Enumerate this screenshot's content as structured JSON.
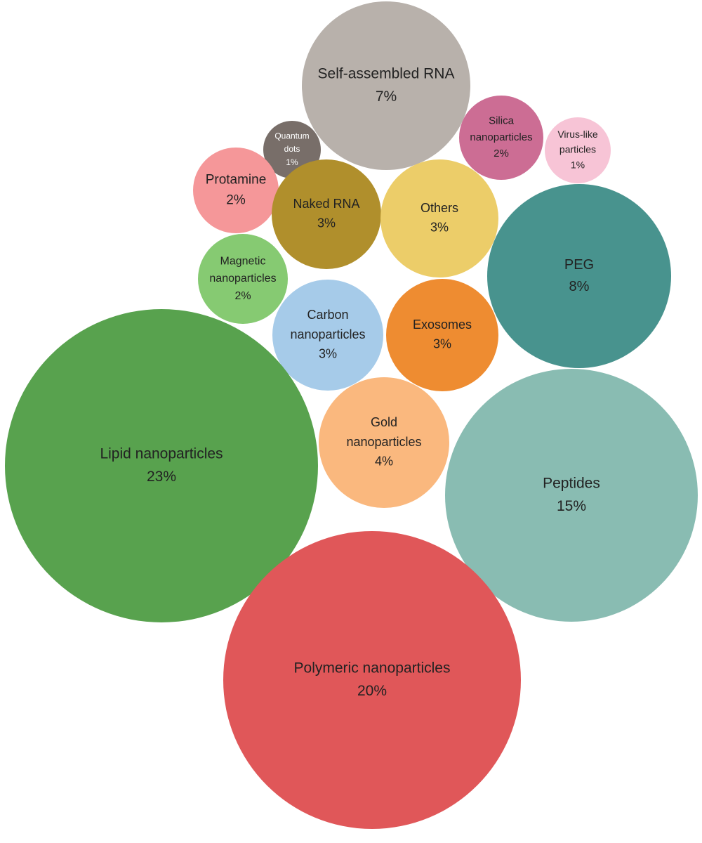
{
  "chart_data": {
    "type": "bubble",
    "unit": "%",
    "series": [
      {
        "name": "Self-assembled RNA",
        "value": 7,
        "value_label": "7%",
        "color": "#b8b1ab",
        "text_color": "#222222"
      },
      {
        "name": "Silica nanoparticles",
        "value": 2,
        "value_label": "2%",
        "color": "#cc6d94",
        "text_color": "#222222"
      },
      {
        "name": "Virus-like particles",
        "value": 1,
        "value_label": "1%",
        "color": "#f7c4d6",
        "text_color": "#222222"
      },
      {
        "name": "Quantum dots",
        "value": 1,
        "value_label": "1%",
        "color": "#786e69",
        "text_color": "#ffffff"
      },
      {
        "name": "Protamine",
        "value": 2,
        "value_label": "2%",
        "color": "#f59799",
        "text_color": "#222222"
      },
      {
        "name": "Naked RNA",
        "value": 3,
        "value_label": "3%",
        "color": "#b08f2c",
        "text_color": "#222222"
      },
      {
        "name": "Others",
        "value": 3,
        "value_label": "3%",
        "color": "#eccd69",
        "text_color": "#222222"
      },
      {
        "name": "PEG",
        "value": 8,
        "value_label": "8%",
        "color": "#48938e",
        "text_color": "#222222"
      },
      {
        "name": "Magnetic nanoparticles",
        "value": 2,
        "value_label": "2%",
        "color": "#86ca72",
        "text_color": "#222222"
      },
      {
        "name": "Carbon nanoparticles",
        "value": 3,
        "value_label": "3%",
        "color": "#a6cbe9",
        "text_color": "#222222"
      },
      {
        "name": "Exosomes",
        "value": 3,
        "value_label": "3%",
        "color": "#ee8c31",
        "text_color": "#222222"
      },
      {
        "name": "Gold nanoparticles",
        "value": 4,
        "value_label": "4%",
        "color": "#fab87e",
        "text_color": "#222222"
      },
      {
        "name": "Lipid nanoparticles",
        "value": 23,
        "value_label": "23%",
        "color": "#58a24e",
        "text_color": "#222222"
      },
      {
        "name": "Peptides",
        "value": 15,
        "value_label": "15%",
        "color": "#89bcb2",
        "text_color": "#222222"
      },
      {
        "name": "Polymeric nanoparticles",
        "value": 20,
        "value_label": "20%",
        "color": "#e05759",
        "text_color": "#222222"
      }
    ]
  }
}
